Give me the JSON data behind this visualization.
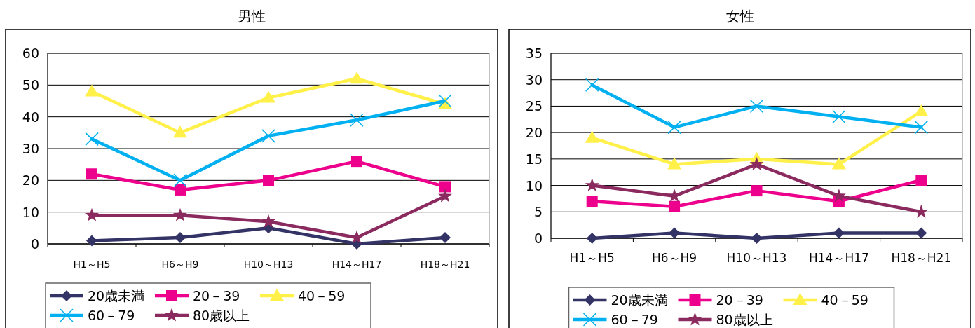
{
  "chart_data": [
    {
      "type": "line",
      "title": "男性",
      "categories": [
        "H1～H5",
        "H6～H9",
        "H10～H13",
        "H14～H17",
        "H18～H21"
      ],
      "ylim": [
        0,
        60
      ],
      "yticks": [
        0,
        10,
        20,
        30,
        40,
        50,
        60
      ],
      "grid": "y",
      "legend": "bottom",
      "series": [
        {
          "name": "20歳未満",
          "color": "#333366",
          "marker": "diamond",
          "values": [
            1,
            2,
            5,
            0,
            2
          ]
        },
        {
          "name": "20－39",
          "color": "#ec008c",
          "marker": "square",
          "values": [
            22,
            17,
            20,
            26,
            18
          ]
        },
        {
          "name": "40－59",
          "color": "#fff04a",
          "marker": "triangle",
          "values": [
            48,
            35,
            46,
            52,
            44
          ]
        },
        {
          "name": "60－79",
          "color": "#00b0f0",
          "marker": "cross",
          "values": [
            33,
            20,
            34,
            39,
            45
          ]
        },
        {
          "name": "80歳以上",
          "color": "#8b2a5e",
          "marker": "star",
          "values": [
            9,
            9,
            7,
            2,
            15
          ]
        }
      ]
    },
    {
      "type": "line",
      "title": "女性",
      "categories": [
        "H1～H5",
        "H6～H9",
        "H10～H13",
        "H14～H17",
        "H18～H21"
      ],
      "ylim": [
        0,
        35
      ],
      "yticks": [
        0,
        5,
        10,
        15,
        20,
        25,
        30,
        35
      ],
      "grid": "y",
      "legend": "bottom",
      "series": [
        {
          "name": "20歳未満",
          "color": "#333366",
          "marker": "diamond",
          "values": [
            0,
            1,
            0,
            1,
            1
          ]
        },
        {
          "name": "20－39",
          "color": "#ec008c",
          "marker": "square",
          "values": [
            7,
            6,
            9,
            7,
            11
          ]
        },
        {
          "name": "40－59",
          "color": "#fff04a",
          "marker": "triangle",
          "values": [
            19,
            14,
            15,
            14,
            24
          ]
        },
        {
          "name": "60－79",
          "color": "#00b0f0",
          "marker": "cross",
          "values": [
            29,
            21,
            25,
            23,
            21
          ]
        },
        {
          "name": "80歳以上",
          "color": "#8b2a5e",
          "marker": "star",
          "values": [
            10,
            8,
            14,
            8,
            5
          ]
        }
      ]
    }
  ]
}
